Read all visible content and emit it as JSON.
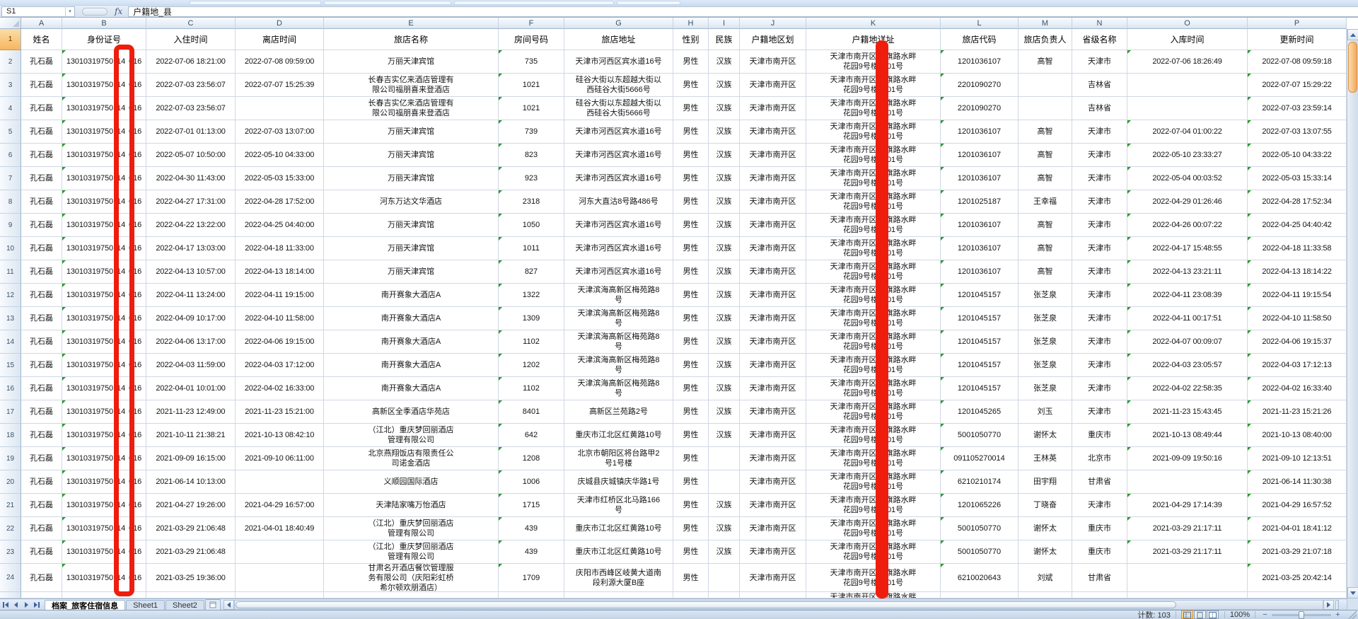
{
  "colors": {
    "annotation_red": "#ee1d0d",
    "selected_header_amber": "#f6b75f",
    "scroll_thumb_orange": "#f2a95e"
  },
  "formula_bar": {
    "name_box": "S1",
    "fx_label": "fx",
    "formula_value": "户籍地_县"
  },
  "sheet_tabs": [
    {
      "label": "档案_旅客住宿信息",
      "active": true
    },
    {
      "label": "Sheet1",
      "active": false
    },
    {
      "label": "Sheet2",
      "active": false
    }
  ],
  "status_bar": {
    "count_label": "计数: 103",
    "zoom_level": "100%"
  },
  "grid": {
    "col_letters": [
      "A",
      "B",
      "C",
      "D",
      "E",
      "F",
      "G",
      "H",
      "I",
      "J",
      "K",
      "L",
      "M",
      "N",
      "O",
      "P"
    ],
    "header_row_num": "1",
    "headers": [
      "姓名",
      "身份证号",
      "入住时间",
      "离店时间",
      "旅店名称",
      "房间号码",
      "旅店地址",
      "性别",
      "民族",
      "户籍地区划",
      "户籍地详址",
      "旅店代码",
      "旅店负责人",
      "省级名称",
      "入库时间",
      "更新时间"
    ],
    "household_addr": {
      "l1a": "天津市南开区",
      "l1b": "旗路水畔",
      "l2a": "花园9号楼",
      "l2b": "01号"
    },
    "rows": [
      {
        "n": "2",
        "name": "孔石磊",
        "id_pre": "13010319750",
        "id_mid": "14",
        "id_suf": "016",
        "checkin": "2022-07-06 18:21:00",
        "checkout": "2022-07-08 09:59:00",
        "hotel": "万丽天津宾馆",
        "room": "735",
        "addr": "天津市河西区宾水道16号",
        "gender": "男性",
        "ethnic": "汉族",
        "region": "天津市南开区",
        "code": "1201036107",
        "manager": "高智",
        "province": "天津市",
        "stored": "2022-07-06 18:26:49",
        "updated": "2022-07-08 09:59:18"
      },
      {
        "n": "3",
        "name": "孔石磊",
        "id_pre": "13010319750",
        "id_mid": "14",
        "id_suf": "016",
        "checkin": "2022-07-03 23:56:07",
        "checkout": "2022-07-07 15:25:39",
        "hotel": "长春吉实亿来酒店管理有\n限公司福朋喜来登酒店",
        "room": "1021",
        "addr": "硅谷大街以东超越大街以\n西硅谷大街5666号",
        "gender": "男性",
        "ethnic": "汉族",
        "region": "天津市南开区",
        "code": "2201090270",
        "manager": "",
        "province": "吉林省",
        "stored": "",
        "updated": "2022-07-07 15:29:22"
      },
      {
        "n": "4",
        "name": "孔石磊",
        "id_pre": "13010319750",
        "id_mid": "14",
        "id_suf": "016",
        "checkin": "2022-07-03 23:56:07",
        "checkout": "",
        "hotel": "长春吉实亿来酒店管理有\n限公司福朋喜来登酒店",
        "room": "1021",
        "addr": "硅谷大街以东超越大街以\n西硅谷大街5666号",
        "gender": "男性",
        "ethnic": "汉族",
        "region": "天津市南开区",
        "code": "2201090270",
        "manager": "",
        "province": "吉林省",
        "stored": "",
        "updated": "2022-07-03 23:59:14"
      },
      {
        "n": "5",
        "name": "孔石磊",
        "id_pre": "13010319750",
        "id_mid": "14",
        "id_suf": "016",
        "checkin": "2022-07-01 01:13:00",
        "checkout": "2022-07-03 13:07:00",
        "hotel": "万丽天津宾馆",
        "room": "739",
        "addr": "天津市河西区宾水道16号",
        "gender": "男性",
        "ethnic": "汉族",
        "region": "天津市南开区",
        "code": "1201036107",
        "manager": "高智",
        "province": "天津市",
        "stored": "2022-07-04 01:00:22",
        "updated": "2022-07-03 13:07:55"
      },
      {
        "n": "6",
        "name": "孔石磊",
        "id_pre": "13010319750",
        "id_mid": "14",
        "id_suf": "016",
        "checkin": "2022-05-07 10:50:00",
        "checkout": "2022-05-10 04:33:00",
        "hotel": "万丽天津宾馆",
        "room": "823",
        "addr": "天津市河西区宾水道16号",
        "gender": "男性",
        "ethnic": "汉族",
        "region": "天津市南开区",
        "code": "1201036107",
        "manager": "高智",
        "province": "天津市",
        "stored": "2022-05-10 23:33:27",
        "updated": "2022-05-10 04:33:22"
      },
      {
        "n": "7",
        "name": "孔石磊",
        "id_pre": "13010319750",
        "id_mid": "14",
        "id_suf": "016",
        "checkin": "2022-04-30 11:43:00",
        "checkout": "2022-05-03 15:33:00",
        "hotel": "万丽天津宾馆",
        "room": "923",
        "addr": "天津市河西区宾水道16号",
        "gender": "男性",
        "ethnic": "汉族",
        "region": "天津市南开区",
        "code": "1201036107",
        "manager": "高智",
        "province": "天津市",
        "stored": "2022-05-04 00:03:52",
        "updated": "2022-05-03 15:33:14"
      },
      {
        "n": "8",
        "name": "孔石磊",
        "id_pre": "13010319750",
        "id_mid": "14",
        "id_suf": "016",
        "checkin": "2022-04-27 17:31:00",
        "checkout": "2022-04-28 17:52:00",
        "hotel": "河东万达文华酒店",
        "room": "2318",
        "addr": "河东大直沽8号路486号",
        "gender": "男性",
        "ethnic": "汉族",
        "region": "天津市南开区",
        "code": "1201025187",
        "manager": "王幸福",
        "province": "天津市",
        "stored": "2022-04-29 01:26:46",
        "updated": "2022-04-28 17:52:34"
      },
      {
        "n": "9",
        "name": "孔石磊",
        "id_pre": "13010319750",
        "id_mid": "14",
        "id_suf": "016",
        "checkin": "2022-04-22 13:22:00",
        "checkout": "2022-04-25 04:40:00",
        "hotel": "万丽天津宾馆",
        "room": "1050",
        "addr": "天津市河西区宾水道16号",
        "gender": "男性",
        "ethnic": "汉族",
        "region": "天津市南开区",
        "code": "1201036107",
        "manager": "高智",
        "province": "天津市",
        "stored": "2022-04-26 00:07:22",
        "updated": "2022-04-25 04:40:42"
      },
      {
        "n": "10",
        "name": "孔石磊",
        "id_pre": "13010319750",
        "id_mid": "14",
        "id_suf": "016",
        "checkin": "2022-04-17 13:03:00",
        "checkout": "2022-04-18 11:33:00",
        "hotel": "万丽天津宾馆",
        "room": "1011",
        "addr": "天津市河西区宾水道16号",
        "gender": "男性",
        "ethnic": "汉族",
        "region": "天津市南开区",
        "code": "1201036107",
        "manager": "高智",
        "province": "天津市",
        "stored": "2022-04-17 15:48:55",
        "updated": "2022-04-18 11:33:58"
      },
      {
        "n": "11",
        "name": "孔石磊",
        "id_pre": "13010319750",
        "id_mid": "14",
        "id_suf": "016",
        "checkin": "2022-04-13 10:57:00",
        "checkout": "2022-04-13 18:14:00",
        "hotel": "万丽天津宾馆",
        "room": "827",
        "addr": "天津市河西区宾水道16号",
        "gender": "男性",
        "ethnic": "汉族",
        "region": "天津市南开区",
        "code": "1201036107",
        "manager": "高智",
        "province": "天津市",
        "stored": "2022-04-13 23:21:11",
        "updated": "2022-04-13 18:14:22"
      },
      {
        "n": "12",
        "name": "孔石磊",
        "id_pre": "13010319750",
        "id_mid": "14",
        "id_suf": "016",
        "checkin": "2022-04-11 13:24:00",
        "checkout": "2022-04-11 19:15:00",
        "hotel": "南开赛象大酒店A",
        "room": "1322",
        "addr": "天津滨海高新区梅苑路8\n号",
        "gender": "男性",
        "ethnic": "汉族",
        "region": "天津市南开区",
        "code": "1201045157",
        "manager": "张芝泉",
        "province": "天津市",
        "stored": "2022-04-11 23:08:39",
        "updated": "2022-04-11 19:15:54"
      },
      {
        "n": "13",
        "name": "孔石磊",
        "id_pre": "13010319750",
        "id_mid": "14",
        "id_suf": "016",
        "checkin": "2022-04-09 10:17:00",
        "checkout": "2022-04-10 11:58:00",
        "hotel": "南开赛象大酒店A",
        "room": "1309",
        "addr": "天津滨海高新区梅苑路8\n号",
        "gender": "男性",
        "ethnic": "汉族",
        "region": "天津市南开区",
        "code": "1201045157",
        "manager": "张芝泉",
        "province": "天津市",
        "stored": "2022-04-11 00:17:51",
        "updated": "2022-04-10 11:58:50"
      },
      {
        "n": "14",
        "name": "孔石磊",
        "id_pre": "13010319750",
        "id_mid": "14",
        "id_suf": "016",
        "checkin": "2022-04-06 13:17:00",
        "checkout": "2022-04-06 19:15:00",
        "hotel": "南开赛象大酒店A",
        "room": "1102",
        "addr": "天津滨海高新区梅苑路8\n号",
        "gender": "男性",
        "ethnic": "汉族",
        "region": "天津市南开区",
        "code": "1201045157",
        "manager": "张芝泉",
        "province": "天津市",
        "stored": "2022-04-07 00:09:07",
        "updated": "2022-04-06 19:15:37"
      },
      {
        "n": "15",
        "name": "孔石磊",
        "id_pre": "13010319750",
        "id_mid": "14",
        "id_suf": "016",
        "checkin": "2022-04-03 11:59:00",
        "checkout": "2022-04-03 17:12:00",
        "hotel": "南开赛象大酒店A",
        "room": "1202",
        "addr": "天津滨海高新区梅苑路8\n号",
        "gender": "男性",
        "ethnic": "汉族",
        "region": "天津市南开区",
        "code": "1201045157",
        "manager": "张芝泉",
        "province": "天津市",
        "stored": "2022-04-03 23:05:57",
        "updated": "2022-04-03 17:12:13"
      },
      {
        "n": "16",
        "name": "孔石磊",
        "id_pre": "13010319750",
        "id_mid": "14",
        "id_suf": "016",
        "checkin": "2022-04-01 10:01:00",
        "checkout": "2022-04-02 16:33:00",
        "hotel": "南开赛象大酒店A",
        "room": "1102",
        "addr": "天津滨海高新区梅苑路8\n号",
        "gender": "男性",
        "ethnic": "汉族",
        "region": "天津市南开区",
        "code": "1201045157",
        "manager": "张芝泉",
        "province": "天津市",
        "stored": "2022-04-02 22:58:35",
        "updated": "2022-04-02 16:33:40"
      },
      {
        "n": "17",
        "name": "孔石磊",
        "id_pre": "13010319750",
        "id_mid": "14",
        "id_suf": "016",
        "checkin": "2021-11-23 12:49:00",
        "checkout": "2021-11-23 15:21:00",
        "hotel": "高新区全季酒店华苑店",
        "room": "8401",
        "addr": "高新区兰苑路2号",
        "gender": "男性",
        "ethnic": "汉族",
        "region": "天津市南开区",
        "code": "1201045265",
        "manager": "刘玉",
        "province": "天津市",
        "stored": "2021-11-23 15:43:45",
        "updated": "2021-11-23 15:21:26"
      },
      {
        "n": "18",
        "name": "孔石磊",
        "id_pre": "13010319750",
        "id_mid": "14",
        "id_suf": "016",
        "checkin": "2021-10-11 21:38:21",
        "checkout": "2021-10-13 08:42:10",
        "hotel": "（江北）重庆梦回丽酒店\n管理有限公司",
        "room": "642",
        "addr": "重庆市江北区红黄路10号",
        "gender": "男性",
        "ethnic": "汉族",
        "region": "天津市南开区",
        "code": "5001050770",
        "manager": "谢怀太",
        "province": "重庆市",
        "stored": "2021-10-13 08:49:44",
        "updated": "2021-10-13 08:40:00"
      },
      {
        "n": "19",
        "name": "孔石磊",
        "id_pre": "13010319750",
        "id_mid": "14",
        "id_suf": "016",
        "checkin": "2021-09-09 16:15:00",
        "checkout": "2021-09-10 06:11:00",
        "hotel": "北京燕翔饭店有限责任公\n司诺金酒店",
        "room": "1208",
        "addr": "北京市朝阳区将台路甲2\n号1号楼",
        "gender": "男性",
        "ethnic": "",
        "region": "天津市南开区",
        "code": "091105270014",
        "manager": "王林英",
        "province": "北京市",
        "stored": "2021-09-09 19:50:16",
        "updated": "2021-09-10 12:13:51"
      },
      {
        "n": "20",
        "name": "孔石磊",
        "id_pre": "13010319750",
        "id_mid": "14",
        "id_suf": "016",
        "checkin": "2021-06-14 10:13:00",
        "checkout": "",
        "hotel": "义顺园国际酒店",
        "room": "1006",
        "addr": "庆城县庆城镇庆华路1号",
        "gender": "男性",
        "ethnic": "",
        "region": "天津市南开区",
        "code": "6210210174",
        "manager": "田宇翔",
        "province": "甘肃省",
        "stored": "",
        "updated": "2021-06-14 11:30:38"
      },
      {
        "n": "21",
        "name": "孔石磊",
        "id_pre": "13010319750",
        "id_mid": "14",
        "id_suf": "016",
        "checkin": "2021-04-27 19:26:00",
        "checkout": "2021-04-29 16:57:00",
        "hotel": "天津陆家嘴万怡酒店",
        "room": "1715",
        "addr": "天津市红桥区北马路166\n号",
        "gender": "男性",
        "ethnic": "汉族",
        "region": "天津市南开区",
        "code": "1201065226",
        "manager": "丁晓奋",
        "province": "天津市",
        "stored": "2021-04-29 17:14:39",
        "updated": "2021-04-29 16:57:52"
      },
      {
        "n": "22",
        "name": "孔石磊",
        "id_pre": "13010319750",
        "id_mid": "14",
        "id_suf": "016",
        "checkin": "2021-03-29 21:06:48",
        "checkout": "2021-04-01 18:40:49",
        "hotel": "（江北）重庆梦回丽酒店\n管理有限公司",
        "room": "439",
        "addr": "重庆市江北区红黄路10号",
        "gender": "男性",
        "ethnic": "汉族",
        "region": "天津市南开区",
        "code": "5001050770",
        "manager": "谢怀太",
        "province": "重庆市",
        "stored": "2021-03-29 21:17:11",
        "updated": "2021-04-01 18:41:12"
      },
      {
        "n": "23",
        "name": "孔石磊",
        "id_pre": "13010319750",
        "id_mid": "14",
        "id_suf": "016",
        "checkin": "2021-03-29 21:06:48",
        "checkout": "",
        "hotel": "（江北）重庆梦回丽酒店\n管理有限公司",
        "room": "439",
        "addr": "重庆市江北区红黄路10号",
        "gender": "男性",
        "ethnic": "汉族",
        "region": "天津市南开区",
        "code": "5001050770",
        "manager": "谢怀太",
        "province": "重庆市",
        "stored": "2021-03-29 21:17:11",
        "updated": "2021-03-29 21:07:18"
      },
      {
        "n": "24",
        "name": "孔石磊",
        "id_pre": "13010319750",
        "id_mid": "14",
        "id_suf": "016",
        "checkin": "2021-03-25 19:36:00",
        "checkout": "",
        "hotel": "甘肃名开酒店餐饮管理服\n务有限公司（庆阳彩虹桥\n希尔顿欢朋酒店）",
        "room": "1709",
        "addr": "庆阳市西峰区岐黄大道南\n段利源大厦B座",
        "gender": "男性",
        "ethnic": "",
        "region": "天津市南开区",
        "code": "6210020643",
        "manager": "刘斌",
        "province": "甘肃省",
        "stored": "",
        "updated": "2021-03-25 20:42:14"
      }
    ]
  }
}
